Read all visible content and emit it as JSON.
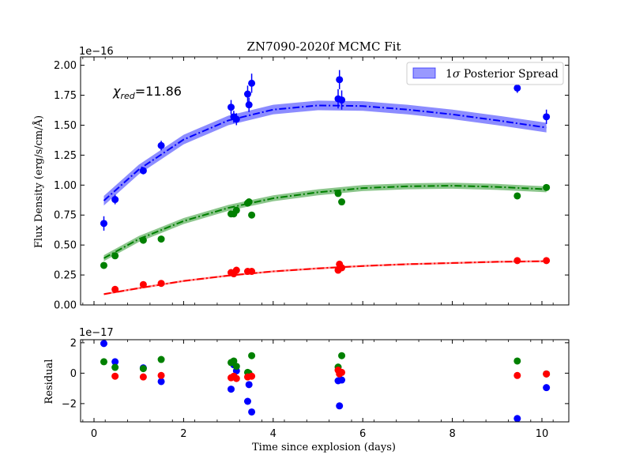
{
  "chart_data": {
    "type": "scatter",
    "title": "ZN7090-2020f MCMC Fit",
    "xlabel": "Time since explosion (days)",
    "xlim": [
      -0.3,
      10.6
    ],
    "xticks": [
      0,
      2,
      4,
      6,
      8,
      10
    ],
    "top_panel": {
      "ylabel": "Flux Density (erg/s/cm/Å)",
      "offset_label": "1e−16",
      "ylim": [
        0,
        2.07
      ],
      "yticks": [
        0.0,
        0.25,
        0.5,
        0.75,
        1.0,
        1.25,
        1.5,
        1.75,
        2.0
      ],
      "ytick_labels": [
        "0.00",
        "0.25",
        "0.50",
        "0.75",
        "1.00",
        "1.25",
        "1.50",
        "1.75",
        "2.00"
      ],
      "annotation": "χ_red=11.86",
      "legend": {
        "label": "1σ Posterior Spread",
        "placement": "top-right",
        "color": "#0000ff"
      },
      "series": [
        {
          "color": "#0000ff",
          "points": [
            {
              "x": 0.22,
              "y": 0.68,
              "err": 0.06
            },
            {
              "x": 0.47,
              "y": 0.88,
              "err": 0.04
            },
            {
              "x": 1.1,
              "y": 1.12,
              "err": 0.03
            },
            {
              "x": 1.5,
              "y": 1.33,
              "err": 0.04
            },
            {
              "x": 3.06,
              "y": 1.65,
              "err": 0.06
            },
            {
              "x": 3.12,
              "y": 1.57,
              "err": 0.05
            },
            {
              "x": 3.18,
              "y": 1.55,
              "err": 0.05
            },
            {
              "x": 3.43,
              "y": 1.76,
              "err": 0.07
            },
            {
              "x": 3.46,
              "y": 1.67,
              "err": 0.06
            },
            {
              "x": 3.52,
              "y": 1.85,
              "err": 0.08
            },
            {
              "x": 5.45,
              "y": 1.72,
              "err": 0.08
            },
            {
              "x": 5.48,
              "y": 1.88,
              "err": 0.08
            },
            {
              "x": 5.53,
              "y": 1.71,
              "err": 0.08
            },
            {
              "x": 9.45,
              "y": 1.81,
              "err": 0.04
            },
            {
              "x": 10.1,
              "y": 1.57,
              "err": 0.06
            }
          ],
          "fit": [
            {
              "x": 0.22,
              "y": 0.87
            },
            {
              "x": 1,
              "y": 1.13
            },
            {
              "x": 2,
              "y": 1.38
            },
            {
              "x": 3,
              "y": 1.54
            },
            {
              "x": 4,
              "y": 1.63
            },
            {
              "x": 5,
              "y": 1.665
            },
            {
              "x": 6,
              "y": 1.66
            },
            {
              "x": 7,
              "y": 1.63
            },
            {
              "x": 8,
              "y": 1.59
            },
            {
              "x": 9,
              "y": 1.54
            },
            {
              "x": 10.1,
              "y": 1.48
            }
          ],
          "band_halfwidth": 0.04
        },
        {
          "color": "#008000",
          "points": [
            {
              "x": 0.22,
              "y": 0.33
            },
            {
              "x": 0.47,
              "y": 0.41
            },
            {
              "x": 1.1,
              "y": 0.54
            },
            {
              "x": 1.5,
              "y": 0.55
            },
            {
              "x": 3.06,
              "y": 0.76
            },
            {
              "x": 3.12,
              "y": 0.76
            },
            {
              "x": 3.18,
              "y": 0.79
            },
            {
              "x": 3.43,
              "y": 0.85
            },
            {
              "x": 3.46,
              "y": 0.86
            },
            {
              "x": 3.52,
              "y": 0.75
            },
            {
              "x": 5.45,
              "y": 0.93
            },
            {
              "x": 5.53,
              "y": 0.86
            },
            {
              "x": 9.45,
              "y": 0.91
            },
            {
              "x": 10.1,
              "y": 0.98
            }
          ],
          "fit": [
            {
              "x": 0.22,
              "y": 0.39
            },
            {
              "x": 1,
              "y": 0.55
            },
            {
              "x": 2,
              "y": 0.7
            },
            {
              "x": 3,
              "y": 0.81
            },
            {
              "x": 4,
              "y": 0.89
            },
            {
              "x": 5,
              "y": 0.94
            },
            {
              "x": 6,
              "y": 0.975
            },
            {
              "x": 7,
              "y": 0.99
            },
            {
              "x": 8,
              "y": 0.995
            },
            {
              "x": 9,
              "y": 0.985
            },
            {
              "x": 10.1,
              "y": 0.965
            }
          ],
          "band_halfwidth": 0.025
        },
        {
          "color": "#ff0000",
          "points": [
            {
              "x": 0.47,
              "y": 0.13
            },
            {
              "x": 1.1,
              "y": 0.17
            },
            {
              "x": 1.5,
              "y": 0.18
            },
            {
              "x": 3.06,
              "y": 0.27
            },
            {
              "x": 3.12,
              "y": 0.26
            },
            {
              "x": 3.18,
              "y": 0.29
            },
            {
              "x": 3.43,
              "y": 0.28
            },
            {
              "x": 3.52,
              "y": 0.28
            },
            {
              "x": 5.45,
              "y": 0.29
            },
            {
              "x": 5.48,
              "y": 0.34
            },
            {
              "x": 5.53,
              "y": 0.31
            },
            {
              "x": 9.45,
              "y": 0.37
            },
            {
              "x": 10.1,
              "y": 0.37
            }
          ],
          "fit": [
            {
              "x": 0.22,
              "y": 0.09
            },
            {
              "x": 1,
              "y": 0.14
            },
            {
              "x": 2,
              "y": 0.2
            },
            {
              "x": 3,
              "y": 0.245
            },
            {
              "x": 4,
              "y": 0.28
            },
            {
              "x": 5,
              "y": 0.305
            },
            {
              "x": 6,
              "y": 0.325
            },
            {
              "x": 7,
              "y": 0.34
            },
            {
              "x": 8,
              "y": 0.35
            },
            {
              "x": 9,
              "y": 0.36
            },
            {
              "x": 10.1,
              "y": 0.365
            }
          ],
          "band_halfwidth": 0.008
        }
      ]
    },
    "bottom_panel": {
      "ylabel": "Residual",
      "offset_label": "1e−17",
      "ylim": [
        -3.2,
        2.2
      ],
      "yticks": [
        -2,
        0,
        2
      ],
      "ytick_labels": [
        "−2",
        "0",
        "2"
      ],
      "series": [
        {
          "color": "#0000ff",
          "points": [
            {
              "x": 0.22,
              "y": 1.95
            },
            {
              "x": 0.47,
              "y": 0.75
            },
            {
              "x": 1.1,
              "y": 0.35
            },
            {
              "x": 1.5,
              "y": -0.55
            },
            {
              "x": 3.06,
              "y": -1.05
            },
            {
              "x": 3.12,
              "y": 0.55
            },
            {
              "x": 3.18,
              "y": 0.15
            },
            {
              "x": 3.43,
              "y": -1.85
            },
            {
              "x": 3.46,
              "y": -0.75
            },
            {
              "x": 3.52,
              "y": -2.55
            },
            {
              "x": 5.45,
              "y": -0.5
            },
            {
              "x": 5.48,
              "y": -2.15
            },
            {
              "x": 5.53,
              "y": -0.45
            },
            {
              "x": 9.45,
              "y": -2.98
            },
            {
              "x": 10.1,
              "y": -0.95
            }
          ]
        },
        {
          "color": "#008000",
          "points": [
            {
              "x": 0.22,
              "y": 0.75
            },
            {
              "x": 0.47,
              "y": 0.38
            },
            {
              "x": 1.1,
              "y": 0.3
            },
            {
              "x": 1.5,
              "y": 0.9
            },
            {
              "x": 3.06,
              "y": 0.7
            },
            {
              "x": 3.12,
              "y": 0.8
            },
            {
              "x": 3.18,
              "y": 0.45
            },
            {
              "x": 3.43,
              "y": 0.05
            },
            {
              "x": 3.46,
              "y": 0.0
            },
            {
              "x": 3.52,
              "y": 1.15
            },
            {
              "x": 5.45,
              "y": 0.4
            },
            {
              "x": 5.53,
              "y": 1.15
            },
            {
              "x": 9.45,
              "y": 0.8
            },
            {
              "x": 10.1,
              "y": -0.05
            }
          ]
        },
        {
          "color": "#ff0000",
          "points": [
            {
              "x": 0.47,
              "y": -0.2
            },
            {
              "x": 1.1,
              "y": -0.25
            },
            {
              "x": 1.5,
              "y": -0.15
            },
            {
              "x": 3.06,
              "y": -0.3
            },
            {
              "x": 3.12,
              "y": -0.2
            },
            {
              "x": 3.18,
              "y": -0.35
            },
            {
              "x": 3.43,
              "y": -0.25
            },
            {
              "x": 3.52,
              "y": -0.2
            },
            {
              "x": 5.45,
              "y": 0.2
            },
            {
              "x": 5.48,
              "y": -0.05
            },
            {
              "x": 5.53,
              "y": 0.05
            },
            {
              "x": 9.45,
              "y": -0.15
            },
            {
              "x": 10.1,
              "y": -0.05
            }
          ]
        }
      ]
    }
  }
}
